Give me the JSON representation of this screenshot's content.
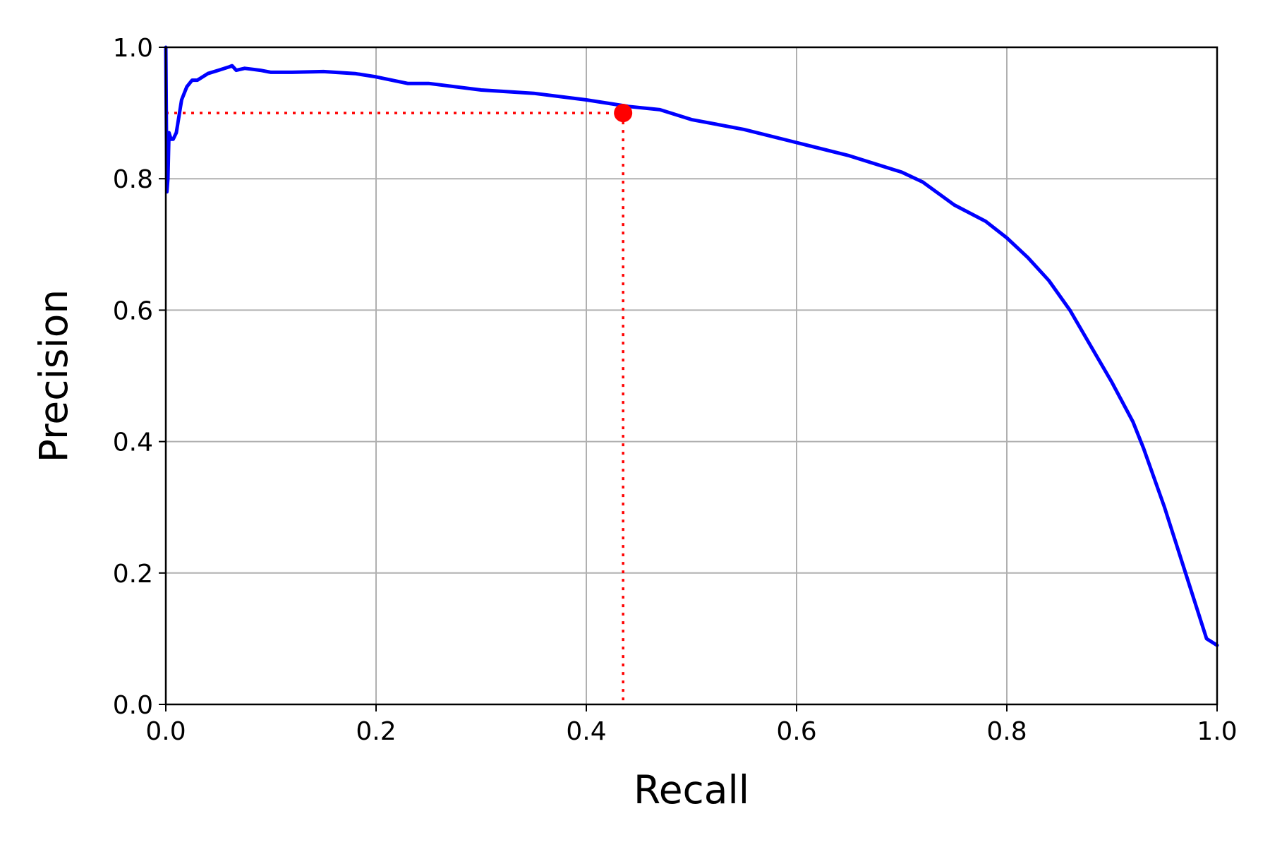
{
  "chart_data": {
    "type": "line",
    "title": "",
    "xlabel": "Recall",
    "ylabel": "Precision",
    "xlim": [
      0.0,
      1.0
    ],
    "ylim": [
      0.0,
      1.0
    ],
    "xticks": [
      0.0,
      0.2,
      0.4,
      0.6,
      0.8,
      1.0
    ],
    "yticks": [
      0.0,
      0.2,
      0.4,
      0.6,
      0.8,
      1.0
    ],
    "xtick_labels": [
      "0.0",
      "0.2",
      "0.4",
      "0.6",
      "0.8",
      "1.0"
    ],
    "ytick_labels": [
      "0.0",
      "0.2",
      "0.4",
      "0.6",
      "0.8",
      "1.0"
    ],
    "grid": true,
    "legend": "none",
    "series": [
      {
        "color": "#0000ff",
        "x": [
          0.0,
          0.001,
          0.002,
          0.003,
          0.005,
          0.007,
          0.01,
          0.015,
          0.02,
          0.025,
          0.03,
          0.04,
          0.05,
          0.06,
          0.063,
          0.067,
          0.075,
          0.08,
          0.09,
          0.1,
          0.12,
          0.15,
          0.18,
          0.2,
          0.23,
          0.25,
          0.3,
          0.35,
          0.4,
          0.44,
          0.47,
          0.5,
          0.55,
          0.6,
          0.65,
          0.7,
          0.72,
          0.75,
          0.78,
          0.8,
          0.82,
          0.84,
          0.86,
          0.88,
          0.9,
          0.92,
          0.93,
          0.94,
          0.95,
          0.96,
          0.97,
          0.98,
          0.99,
          1.0
        ],
        "y": [
          1.0,
          0.78,
          0.8,
          0.87,
          0.86,
          0.86,
          0.87,
          0.92,
          0.94,
          0.95,
          0.95,
          0.96,
          0.965,
          0.97,
          0.972,
          0.965,
          0.968,
          0.967,
          0.965,
          0.962,
          0.962,
          0.963,
          0.96,
          0.955,
          0.945,
          0.945,
          0.935,
          0.93,
          0.92,
          0.91,
          0.905,
          0.89,
          0.875,
          0.855,
          0.835,
          0.81,
          0.795,
          0.76,
          0.735,
          0.71,
          0.68,
          0.645,
          0.6,
          0.545,
          0.49,
          0.43,
          0.39,
          0.345,
          0.3,
          0.25,
          0.2,
          0.15,
          0.1,
          0.09
        ]
      }
    ],
    "marker": {
      "x": 0.435,
      "y": 0.9,
      "color": "#ff0000"
    },
    "colors": {
      "curve": "#0000ff",
      "marker": "#ff0000",
      "grid": "#b0b0b0",
      "axes": "#000000"
    }
  }
}
